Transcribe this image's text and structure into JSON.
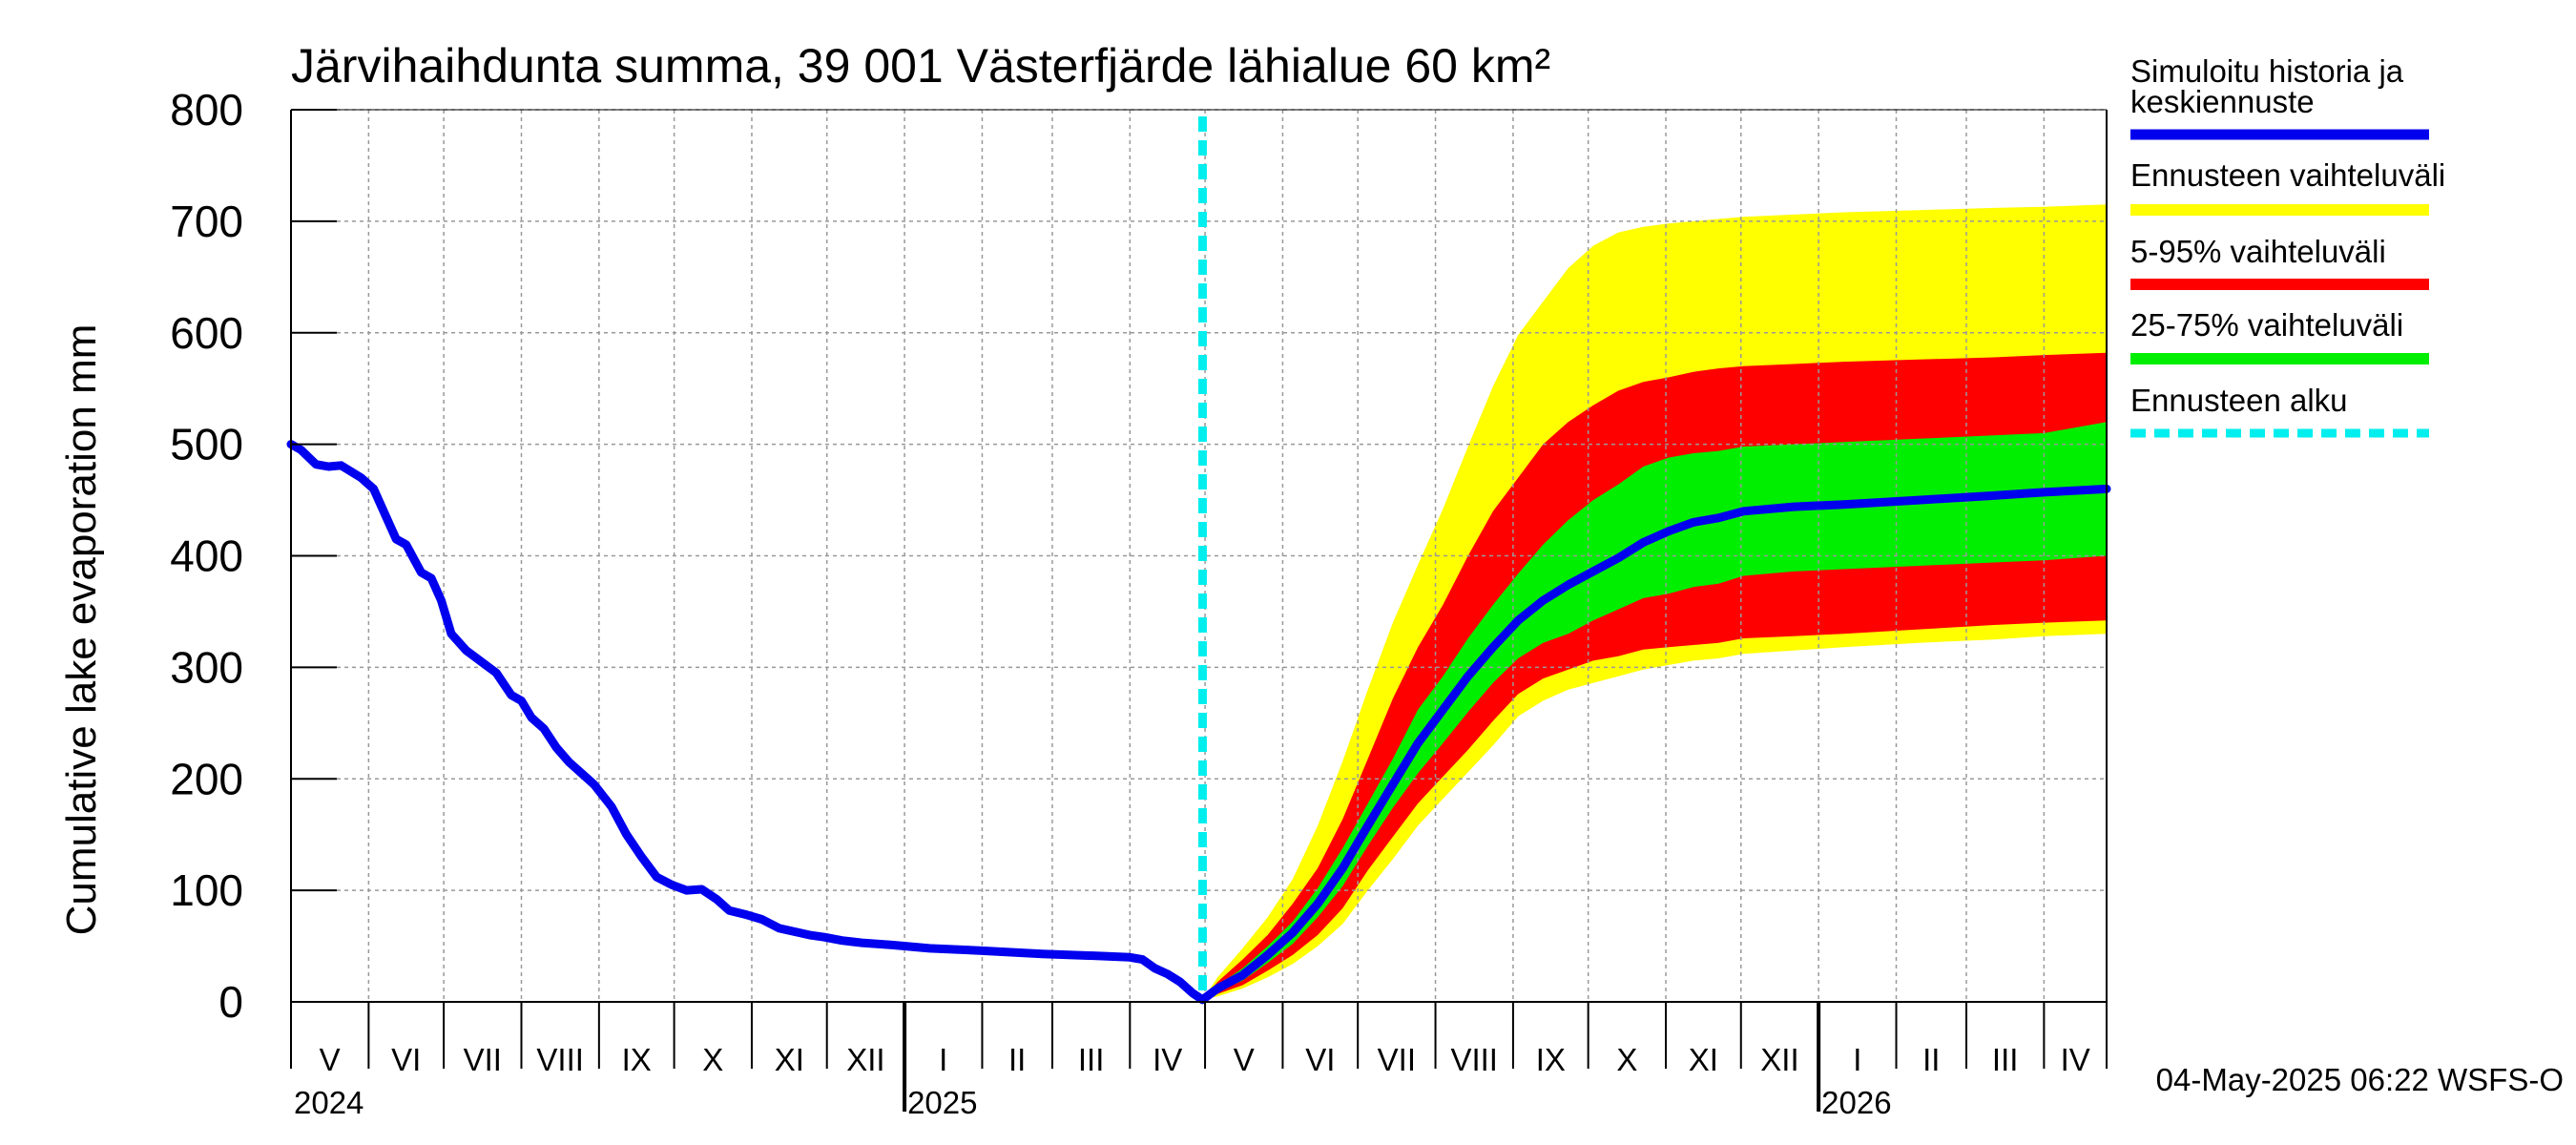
{
  "chart_data": {
    "type": "area",
    "title": "Järvihaihdunta summa, 39 001 Västerfjärde lähialue 60 km²",
    "ylabel": "Cumulative lake evaporation   mm",
    "xlabel": "",
    "ylim": [
      0,
      800
    ],
    "yticks": [
      "0",
      "100",
      "200",
      "300",
      "400",
      "500",
      "600",
      "700",
      "800"
    ],
    "x_domain_days": [
      0,
      725
    ],
    "forecast_start_day": 364,
    "months": [
      {
        "label": "V",
        "start": 0,
        "end": 31
      },
      {
        "label": "VI",
        "start": 31,
        "end": 61
      },
      {
        "label": "VII",
        "start": 61,
        "end": 92
      },
      {
        "label": "VIII",
        "start": 92,
        "end": 123
      },
      {
        "label": "IX",
        "start": 123,
        "end": 153
      },
      {
        "label": "X",
        "start": 153,
        "end": 184
      },
      {
        "label": "XI",
        "start": 184,
        "end": 214
      },
      {
        "label": "XII",
        "start": 214,
        "end": 245
      },
      {
        "label": "I",
        "start": 245,
        "end": 276
      },
      {
        "label": "II",
        "start": 276,
        "end": 304
      },
      {
        "label": "III",
        "start": 304,
        "end": 335
      },
      {
        "label": "IV",
        "start": 335,
        "end": 365
      },
      {
        "label": "V",
        "start": 365,
        "end": 396
      },
      {
        "label": "VI",
        "start": 396,
        "end": 426
      },
      {
        "label": "VII",
        "start": 426,
        "end": 457
      },
      {
        "label": "VIII",
        "start": 457,
        "end": 488
      },
      {
        "label": "IX",
        "start": 488,
        "end": 518
      },
      {
        "label": "X",
        "start": 518,
        "end": 549
      },
      {
        "label": "XI",
        "start": 549,
        "end": 579
      },
      {
        "label": "XII",
        "start": 579,
        "end": 610
      },
      {
        "label": "I",
        "start": 610,
        "end": 641
      },
      {
        "label": "II",
        "start": 641,
        "end": 669
      },
      {
        "label": "III",
        "start": 669,
        "end": 700
      },
      {
        "label": "IV",
        "start": 700,
        "end": 725
      }
    ],
    "years": [
      {
        "label": "2024",
        "day": 0
      },
      {
        "label": "2025",
        "day": 245
      },
      {
        "label": "2026",
        "day": 610
      }
    ],
    "history": {
      "x": [
        0,
        4,
        10,
        15,
        20,
        28,
        33,
        38,
        42,
        46,
        52,
        56,
        60,
        64,
        70,
        76,
        82,
        88,
        92,
        96,
        101,
        106,
        111,
        116,
        121,
        128,
        134,
        140,
        146,
        152,
        158,
        164,
        170,
        175,
        182,
        188,
        195,
        201,
        207,
        213,
        220,
        228,
        240,
        255,
        275,
        300,
        325,
        335,
        340,
        345,
        350,
        355,
        360,
        364
      ],
      "y": [
        500,
        495,
        482,
        480,
        481,
        470,
        460,
        435,
        415,
        410,
        385,
        380,
        360,
        330,
        315,
        305,
        295,
        275,
        270,
        255,
        245,
        228,
        215,
        205,
        195,
        175,
        150,
        130,
        112,
        105,
        100,
        101,
        92,
        82,
        78,
        74,
        66,
        63,
        60,
        58,
        55,
        53,
        51,
        48,
        46,
        43,
        41,
        40,
        38,
        30,
        25,
        18,
        8,
        2
      ]
    },
    "forecast": {
      "x": [
        364,
        370,
        380,
        390,
        400,
        410,
        420,
        430,
        440,
        450,
        460,
        470,
        480,
        490,
        500,
        510,
        520,
        530,
        540,
        550,
        560,
        570,
        580,
        600,
        620,
        650,
        680,
        700,
        725
      ],
      "median": [
        2,
        12,
        24,
        42,
        62,
        88,
        120,
        158,
        195,
        232,
        262,
        292,
        318,
        342,
        360,
        374,
        386,
        398,
        412,
        422,
        430,
        434,
        440,
        444,
        446,
        450,
        454,
        457,
        460
      ],
      "p25": [
        2,
        9,
        19,
        35,
        52,
        76,
        104,
        140,
        174,
        205,
        232,
        260,
        286,
        308,
        322,
        330,
        342,
        352,
        362,
        366,
        372,
        375,
        382,
        386,
        388,
        391,
        394,
        396,
        400
      ],
      "p75": [
        2,
        15,
        30,
        50,
        72,
        102,
        138,
        178,
        218,
        262,
        292,
        326,
        356,
        384,
        410,
        432,
        450,
        464,
        480,
        488,
        492,
        494,
        498,
        500,
        502,
        505,
        508,
        510,
        520
      ],
      "p5": [
        2,
        7,
        15,
        28,
        42,
        60,
        84,
        118,
        148,
        178,
        202,
        226,
        252,
        276,
        290,
        298,
        306,
        310,
        316,
        318,
        320,
        322,
        326,
        328,
        330,
        334,
        338,
        340,
        342
      ],
      "p95": [
        2,
        18,
        38,
        60,
        88,
        120,
        164,
        218,
        272,
        318,
        356,
        400,
        440,
        470,
        500,
        520,
        535,
        548,
        556,
        560,
        565,
        568,
        570,
        572,
        574,
        576,
        578,
        580,
        582
      ],
      "min": [
        2,
        5,
        12,
        22,
        34,
        50,
        70,
        100,
        128,
        158,
        182,
        206,
        230,
        256,
        270,
        280,
        286,
        292,
        298,
        302,
        306,
        308,
        312,
        315,
        318,
        322,
        325,
        328,
        330
      ],
      "max": [
        2,
        22,
        48,
        76,
        110,
        158,
        216,
        280,
        340,
        392,
        442,
        498,
        552,
        598,
        628,
        658,
        678,
        690,
        695,
        698,
        700,
        702,
        704,
        706,
        708,
        710,
        712,
        713,
        715
      ]
    },
    "legend": [
      {
        "label": "Simuloitu historia ja keskiennuste",
        "color": "#0000ee",
        "style": "line"
      },
      {
        "label": "Ennusteen vaihteluväli",
        "color": "#ffff00",
        "style": "band"
      },
      {
        "label": "5-95% vaihteluväli",
        "color": "#ff0000",
        "style": "band"
      },
      {
        "label": "25-75% vaihteluväli",
        "color": "#00ee00",
        "style": "band"
      },
      {
        "label": "Ennusteen alku",
        "color": "#00eeee",
        "style": "dashed"
      }
    ],
    "legend_placement": "right"
  },
  "footer": {
    "timestamp": "04-May-2025 06:22 WSFS-O"
  },
  "colors": {
    "history_line": "#0000ee",
    "range_band": "#ffff00",
    "p5_95_band": "#ff0000",
    "p25_75_band": "#00ee00",
    "forecast_start": "#00eeee",
    "grid": "#999999"
  }
}
